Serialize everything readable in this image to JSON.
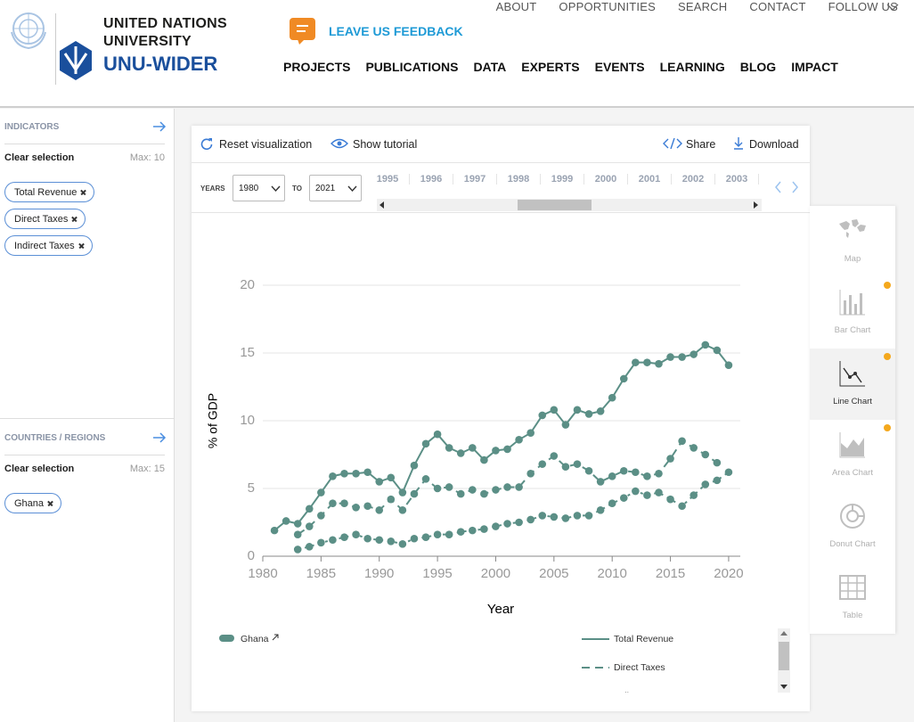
{
  "header": {
    "org_line1": "UNITED NATIONS",
    "org_line2": "UNIVERSITY",
    "brand": "UNU-WIDER",
    "feedback": "LEAVE US FEEDBACK",
    "top_nav": [
      "ABOUT",
      "OPPORTUNITIES",
      "SEARCH",
      "CONTACT",
      "FOLLOW US"
    ],
    "main_nav": [
      "PROJECTS",
      "PUBLICATIONS",
      "DATA",
      "EXPERTS",
      "EVENTS",
      "LEARNING",
      "BLOG",
      "IMPACT"
    ]
  },
  "sidebar": {
    "indicators": {
      "title": "INDICATORS",
      "clear": "Clear selection",
      "max": "Max: 10",
      "chips": [
        "Total Revenue",
        "Direct Taxes",
        "Indirect Taxes"
      ]
    },
    "countries": {
      "title": "COUNTRIES / REGIONS",
      "clear": "Clear selection",
      "max": "Max: 15",
      "chips": [
        "Ghana"
      ]
    }
  },
  "toolbar": {
    "reset": "Reset visualization",
    "tutorial": "Show tutorial",
    "share": "Share",
    "download": "Download"
  },
  "year_filter": {
    "years_label": "YEARS",
    "from": "1980",
    "to_label": "TO",
    "to": "2021",
    "timeline": [
      "1995",
      "1996",
      "1997",
      "1998",
      "1999",
      "2000",
      "2001",
      "2002",
      "2003"
    ]
  },
  "chart_types": [
    {
      "label": "Map"
    },
    {
      "label": "Bar Chart",
      "badge": true
    },
    {
      "label": "Line Chart",
      "badge": true,
      "selected": true
    },
    {
      "label": "Area Chart",
      "badge": true
    },
    {
      "label": "Donut Chart"
    },
    {
      "label": "Table"
    }
  ],
  "chart_data": {
    "type": "line",
    "x_label": "Year",
    "y_label": "% of GDP",
    "country_legend": "Ghana",
    "x": [
      1981,
      1982,
      1983,
      1984,
      1985,
      1986,
      1987,
      1988,
      1989,
      1990,
      1991,
      1992,
      1993,
      1994,
      1995,
      1996,
      1997,
      1998,
      1999,
      2000,
      2001,
      2002,
      2003,
      2004,
      2005,
      2006,
      2007,
      2008,
      2009,
      2010,
      2011,
      2012,
      2013,
      2014,
      2015,
      2016,
      2017,
      2018,
      2019,
      2020
    ],
    "series": [
      {
        "name": "Total Revenue",
        "color": "#5b8f86",
        "line_style": "solid",
        "values": [
          1.9,
          2.6,
          2.4,
          3.5,
          4.7,
          5.9,
          6.1,
          6.1,
          6.2,
          5.5,
          5.8,
          4.7,
          6.7,
          8.3,
          9.0,
          8.0,
          7.6,
          8.0,
          7.1,
          7.8,
          7.9,
          8.6,
          9.1,
          10.4,
          10.8,
          9.7,
          10.8,
          10.5,
          10.7,
          11.7,
          13.1,
          14.3,
          14.3,
          14.2,
          14.7,
          14.7,
          14.9,
          15.6,
          15.2,
          14.1
        ]
      },
      {
        "name": "Direct Taxes",
        "color": "#5b8f86",
        "line_style": "dashed",
        "values": [
          null,
          null,
          1.6,
          2.2,
          3.0,
          3.9,
          3.9,
          3.6,
          3.7,
          3.4,
          4.2,
          3.4,
          4.6,
          5.7,
          5.0,
          5.1,
          4.6,
          4.9,
          4.6,
          4.9,
          5.1,
          5.1,
          6.1,
          6.8,
          7.4,
          6.6,
          6.8,
          6.3,
          5.5,
          5.9,
          6.3,
          6.2,
          5.9,
          6.1,
          7.2,
          8.5,
          8.0,
          7.5,
          6.9,
          null
        ]
      },
      {
        "name": "Indirect Taxes",
        "color": "#5b8f86",
        "line_style": "dotted",
        "values": [
          null,
          null,
          0.5,
          0.7,
          1.0,
          1.2,
          1.4,
          1.6,
          1.3,
          1.2,
          1.1,
          0.9,
          1.3,
          1.4,
          1.6,
          1.6,
          1.8,
          1.9,
          2.0,
          2.2,
          2.4,
          2.5,
          2.7,
          3.0,
          2.9,
          2.8,
          3.0,
          3.0,
          3.4,
          3.9,
          4.3,
          4.8,
          4.5,
          4.7,
          4.2,
          3.7,
          4.5,
          5.3,
          5.6,
          6.2
        ]
      }
    ],
    "xlim": [
      1980,
      2021
    ],
    "xticks": [
      1980,
      1985,
      1990,
      1995,
      2000,
      2005,
      2010,
      2015,
      2020
    ],
    "ylim": [
      0,
      20
    ],
    "yticks": [
      0,
      5,
      10,
      15,
      20
    ],
    "grid": true
  }
}
